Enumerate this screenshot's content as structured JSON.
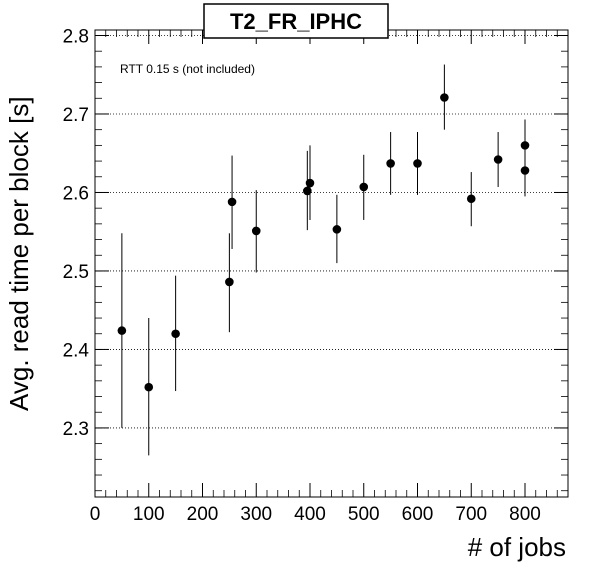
{
  "chart_data": {
    "type": "scatter",
    "title": "T2_FR_IPHC",
    "annotation": "RTT 0.15 s (not included)",
    "xlabel": "# of jobs",
    "ylabel": "Avg. read time per block [s]",
    "xlim": [
      0,
      880
    ],
    "ylim": [
      2.212,
      2.807
    ],
    "x_ticks": [
      0,
      100,
      200,
      300,
      400,
      500,
      600,
      700,
      800
    ],
    "y_ticks": [
      2.3,
      2.4,
      2.5,
      2.6,
      2.7,
      2.8
    ],
    "y_grid": true,
    "x_grid": false,
    "marker_color": "#000000",
    "points": [
      {
        "x": 50,
        "y": 2.424,
        "err_low": 2.3,
        "err_high": 2.548
      },
      {
        "x": 100,
        "y": 2.352,
        "err_low": 2.265,
        "err_high": 2.44
      },
      {
        "x": 150,
        "y": 2.42,
        "err_low": 2.347,
        "err_high": 2.494
      },
      {
        "x": 250,
        "y": 2.486,
        "err_low": 2.422,
        "err_high": 2.548
      },
      {
        "x": 255,
        "y": 2.588,
        "err_low": 2.528,
        "err_high": 2.647
      },
      {
        "x": 300,
        "y": 2.551,
        "err_low": 2.498,
        "err_high": 2.603
      },
      {
        "x": 395,
        "y": 2.602,
        "err_low": 2.552,
        "err_high": 2.653
      },
      {
        "x": 400,
        "y": 2.612,
        "err_low": 2.565,
        "err_high": 2.66
      },
      {
        "x": 450,
        "y": 2.553,
        "err_low": 2.51,
        "err_high": 2.597
      },
      {
        "x": 500,
        "y": 2.607,
        "err_low": 2.565,
        "err_high": 2.648
      },
      {
        "x": 550,
        "y": 2.637,
        "err_low": 2.597,
        "err_high": 2.677
      },
      {
        "x": 600,
        "y": 2.637,
        "err_low": 2.597,
        "err_high": 2.677
      },
      {
        "x": 650,
        "y": 2.721,
        "err_low": 2.68,
        "err_high": 2.763
      },
      {
        "x": 700,
        "y": 2.592,
        "err_low": 2.557,
        "err_high": 2.626
      },
      {
        "x": 750,
        "y": 2.642,
        "err_low": 2.607,
        "err_high": 2.677
      },
      {
        "x": 800,
        "y": 2.628,
        "err_low": 2.595,
        "err_high": 2.661
      },
      {
        "x": 800,
        "y": 2.66,
        "err_low": 2.627,
        "err_high": 2.693
      }
    ]
  }
}
